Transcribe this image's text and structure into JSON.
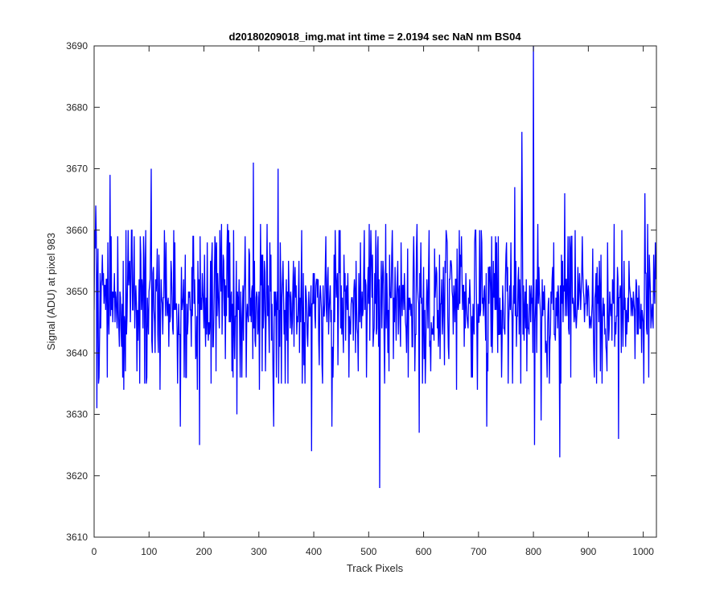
{
  "chart_data": {
    "type": "line",
    "title": "d20180209018_img.mat int time = 2.0194 sec  NaN nm BS04",
    "xlabel": "Track Pixels",
    "ylabel": "Signal (ADU) at pixel 983",
    "xlim": [
      0,
      1024
    ],
    "ylim": [
      3610,
      3690
    ],
    "xticks": [
      0,
      100,
      200,
      300,
      400,
      500,
      600,
      700,
      800,
      900,
      1000
    ],
    "yticks": [
      3610,
      3620,
      3630,
      3640,
      3650,
      3660,
      3670,
      3680,
      3690
    ],
    "grid": false,
    "series_color": "#0000ff",
    "notable_points": [
      {
        "x": 3,
        "y": 3664
      },
      {
        "x": 5,
        "y": 3631
      },
      {
        "x": 29,
        "y": 3669
      },
      {
        "x": 104,
        "y": 3670
      },
      {
        "x": 157,
        "y": 3628
      },
      {
        "x": 192,
        "y": 3625
      },
      {
        "x": 260,
        "y": 3630
      },
      {
        "x": 290,
        "y": 3671
      },
      {
        "x": 327,
        "y": 3628
      },
      {
        "x": 335,
        "y": 3670
      },
      {
        "x": 396,
        "y": 3624
      },
      {
        "x": 433,
        "y": 3628
      },
      {
        "x": 520,
        "y": 3618
      },
      {
        "x": 592,
        "y": 3627
      },
      {
        "x": 715,
        "y": 3628
      },
      {
        "x": 766,
        "y": 3667
      },
      {
        "x": 779,
        "y": 3676
      },
      {
        "x": 800,
        "y": 3690
      },
      {
        "x": 802,
        "y": 3625
      },
      {
        "x": 814,
        "y": 3629
      },
      {
        "x": 848,
        "y": 3623
      },
      {
        "x": 857,
        "y": 3666
      },
      {
        "x": 955,
        "y": 3626
      },
      {
        "x": 1003,
        "y": 3666
      }
    ],
    "baseline": {
      "mean": 3648,
      "low": 3637,
      "high": 3658
    }
  }
}
